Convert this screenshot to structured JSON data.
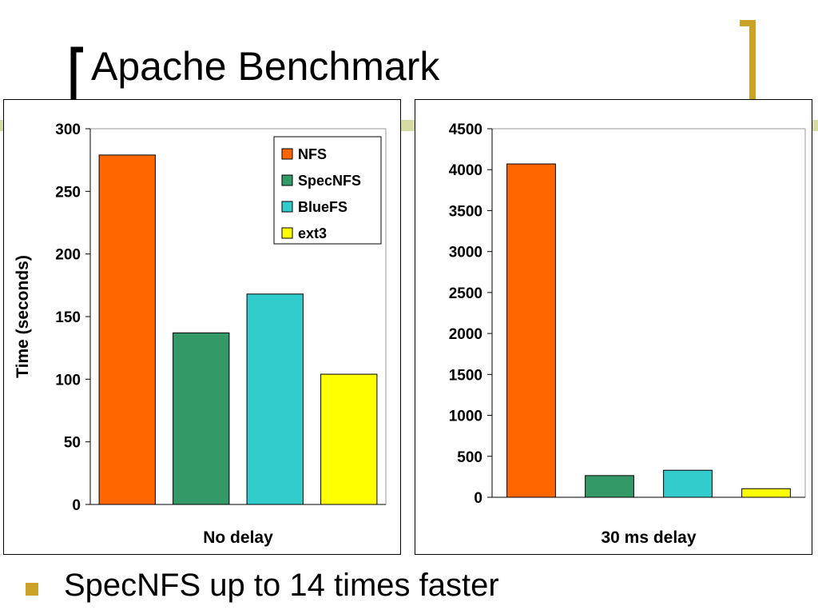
{
  "slide": {
    "title": "Apache Benchmark",
    "bullet": "SpecNFS up to 14 times faster",
    "accent_color": "#c9a227",
    "band_color": "#d6dba4"
  },
  "chart_data": [
    {
      "type": "bar",
      "categories": [
        "NFS",
        "SpecNFS",
        "BlueFS",
        "ext3"
      ],
      "values": [
        279,
        137,
        168,
        104
      ],
      "colors": [
        "#ff6600",
        "#339966",
        "#33cccc",
        "#ffff00"
      ],
      "xlabel": "No delay",
      "ylabel": "Time (seconds)",
      "ylim": [
        0,
        300
      ],
      "yticks": [
        0,
        50,
        100,
        150,
        200,
        250,
        300
      ],
      "legend": {
        "placement": "top-right",
        "entries": [
          "NFS",
          "SpecNFS",
          "BlueFS",
          "ext3"
        ]
      },
      "grid": false
    },
    {
      "type": "bar",
      "categories": [
        "NFS",
        "SpecNFS",
        "BlueFS",
        "ext3"
      ],
      "values": [
        4070,
        265,
        330,
        105
      ],
      "colors": [
        "#ff6600",
        "#339966",
        "#33cccc",
        "#ffff00"
      ],
      "xlabel": "30 ms delay",
      "ylabel": "",
      "ylim": [
        0,
        4500
      ],
      "yticks": [
        0,
        500,
        1000,
        1500,
        2000,
        2500,
        3000,
        3500,
        4000,
        4500
      ],
      "grid": false
    }
  ]
}
